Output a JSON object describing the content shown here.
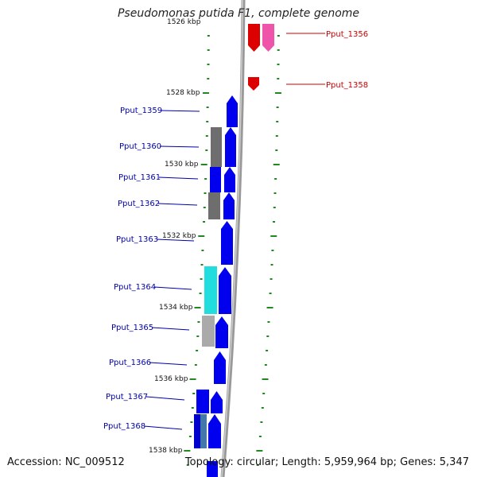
{
  "title": "Pseudomonas putida F1, complete genome",
  "accession": "Accession: NC_009512",
  "topology": "Topology: circular; Length: 5,959,964 bp; Genes: 5,347",
  "colors": {
    "forward_gene_label": "#0000aa",
    "reverse_gene_label": "#cc0000",
    "tick": "#228822",
    "backbone": "#888888"
  },
  "position_labels": [
    "1526 kbp",
    "1528 kbp",
    "1530 kbp",
    "1532 kbp",
    "1534 kbp",
    "1536 kbp",
    "1538 kbp"
  ],
  "genes": [
    {
      "id": "Pput_1356",
      "strand": "reverse"
    },
    {
      "id": "Pput_1358",
      "strand": "reverse"
    },
    {
      "id": "Pput_1359",
      "strand": "forward"
    },
    {
      "id": "Pput_1360",
      "strand": "forward"
    },
    {
      "id": "Pput_1361",
      "strand": "forward"
    },
    {
      "id": "Pput_1362",
      "strand": "forward"
    },
    {
      "id": "Pput_1363",
      "strand": "forward"
    },
    {
      "id": "Pput_1364",
      "strand": "forward"
    },
    {
      "id": "Pput_1365",
      "strand": "forward"
    },
    {
      "id": "Pput_1366",
      "strand": "forward"
    },
    {
      "id": "Pput_1367",
      "strand": "forward"
    },
    {
      "id": "Pput_1368",
      "strand": "forward"
    }
  ]
}
